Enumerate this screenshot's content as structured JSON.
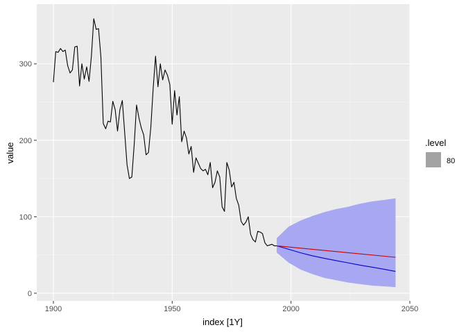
{
  "chart_data": {
    "type": "line",
    "xlabel": "index [1Y]",
    "ylabel": "value",
    "xlim": [
      1893,
      2050
    ],
    "ylim": [
      -10,
      378
    ],
    "x_ticks": [
      1900,
      1950,
      2000,
      2050
    ],
    "y_ticks": [
      0,
      100,
      200,
      300
    ],
    "grid": true,
    "legend": {
      "title": ".level",
      "position": "right",
      "entries": [
        {
          "label": "80",
          "color": "#a3a3a3"
        }
      ]
    },
    "colors": {
      "panel": "#ebebeb",
      "grid_major": "#ffffff",
      "grid_minor": "#f5f5f5",
      "history": "#000000",
      "forecast_mean": "#0000cc",
      "forecast_alt": "#cc0000",
      "interval": "#a7a7f2"
    },
    "series": [
      {
        "x": [
          1900,
          1901,
          1902,
          1903,
          1904,
          1905,
          1906,
          1907,
          1908,
          1909,
          1910,
          1911,
          1912,
          1913,
          1914,
          1915,
          1916,
          1917,
          1918,
          1919,
          1920,
          1921,
          1922,
          1923,
          1924,
          1925,
          1926,
          1927,
          1928,
          1929,
          1930,
          1931,
          1932,
          1933,
          1934,
          1935,
          1936,
          1937,
          1938,
          1939,
          1940,
          1941,
          1942,
          1943,
          1944,
          1945,
          1946,
          1947,
          1948,
          1949,
          1950,
          1951,
          1952,
          1953,
          1954,
          1955,
          1956,
          1957,
          1958,
          1959,
          1960,
          1961,
          1962,
          1963,
          1964,
          1965,
          1966,
          1967,
          1968,
          1969,
          1970,
          1971,
          1972,
          1973,
          1974,
          1975,
          1976,
          1977,
          1978,
          1979,
          1980,
          1981,
          1982,
          1983,
          1984,
          1985,
          1986,
          1987,
          1988,
          1989,
          1990,
          1991,
          1992,
          1993,
          1994
        ],
        "values": [
          276,
          316,
          315,
          320,
          316,
          318,
          298,
          288,
          292,
          322,
          323,
          271,
          300,
          280,
          296,
          277,
          310,
          359,
          345,
          346,
          309,
          222,
          215,
          225,
          224,
          251,
          240,
          212,
          240,
          252,
          210,
          168,
          150,
          152,
          194,
          246,
          229,
          216,
          207,
          181,
          184,
          217,
          268,
          310,
          270,
          300,
          279,
          292,
          285,
          273,
          221,
          265,
          233,
          257,
          198,
          212,
          203,
          182,
          192,
          158,
          177,
          170,
          163,
          160,
          162,
          155,
          171,
          138,
          145,
          160,
          152,
          113,
          107,
          171,
          161,
          139,
          145,
          124,
          115,
          94,
          89,
          93,
          100,
          77,
          70,
          67,
          81,
          80,
          78,
          66,
          62,
          63,
          64,
          62,
          62
        ]
      },
      {
        "x": [
          1994,
          1999,
          2004,
          2009,
          2014,
          2019,
          2024,
          2029,
          2034,
          2039,
          2044
        ],
        "values": [
          62,
          57.5,
          52.9,
          49.0,
          45.7,
          42.6,
          39.7,
          36.8,
          34.1,
          31.4,
          28.5
        ]
      },
      {
        "x": [
          1994,
          2044
        ],
        "values": [
          62,
          47
        ]
      }
    ],
    "intervals": [
      {
        "level": "80",
        "x": [
          1994,
          1999,
          2004,
          2009,
          2014,
          2019,
          2024,
          2029,
          2034,
          2039,
          2044
        ],
        "lower": [
          53,
          40,
          31,
          25,
          20,
          17,
          14,
          12,
          10,
          9,
          8
        ],
        "upper": [
          72,
          87,
          95,
          101,
          106,
          110,
          113,
          117,
          120,
          122,
          124
        ]
      }
    ]
  }
}
